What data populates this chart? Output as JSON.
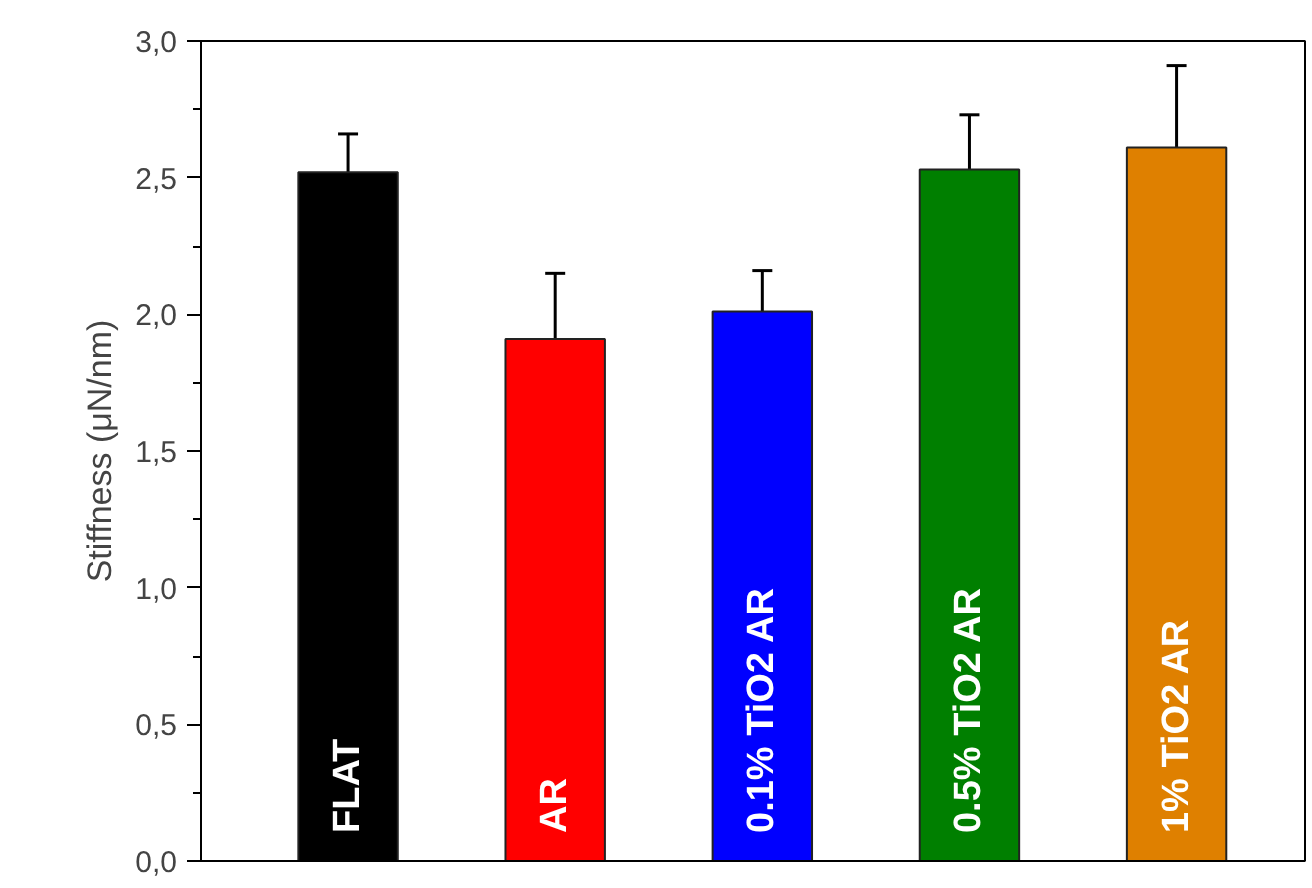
{
  "chart_data": {
    "type": "bar",
    "ylabel": "Stiffness (μN/nm)",
    "categories": [
      "FLAT",
      "AR",
      "0.1% TiO2 AR",
      "0.5% TiO2 AR",
      "1% TiO2 AR"
    ],
    "values": [
      2.52,
      1.91,
      2.01,
      2.53,
      2.61
    ],
    "errors": [
      0.14,
      0.24,
      0.15,
      0.2,
      0.3
    ],
    "colors": [
      "#000000",
      "#ff0000",
      "#0000ff",
      "#007f00",
      "#df8000"
    ],
    "ylim": [
      0,
      3
    ],
    "yticks": [
      {
        "value": 0,
        "label": "0,0"
      },
      {
        "value": 0.5,
        "label": "0,5"
      },
      {
        "value": 1,
        "label": "1,0"
      },
      {
        "value": 1.5,
        "label": "1,5"
      },
      {
        "value": 2,
        "label": "2,0"
      },
      {
        "value": 2.5,
        "label": "2,5"
      },
      {
        "value": 3,
        "label": "3,0"
      }
    ],
    "grid": false
  }
}
